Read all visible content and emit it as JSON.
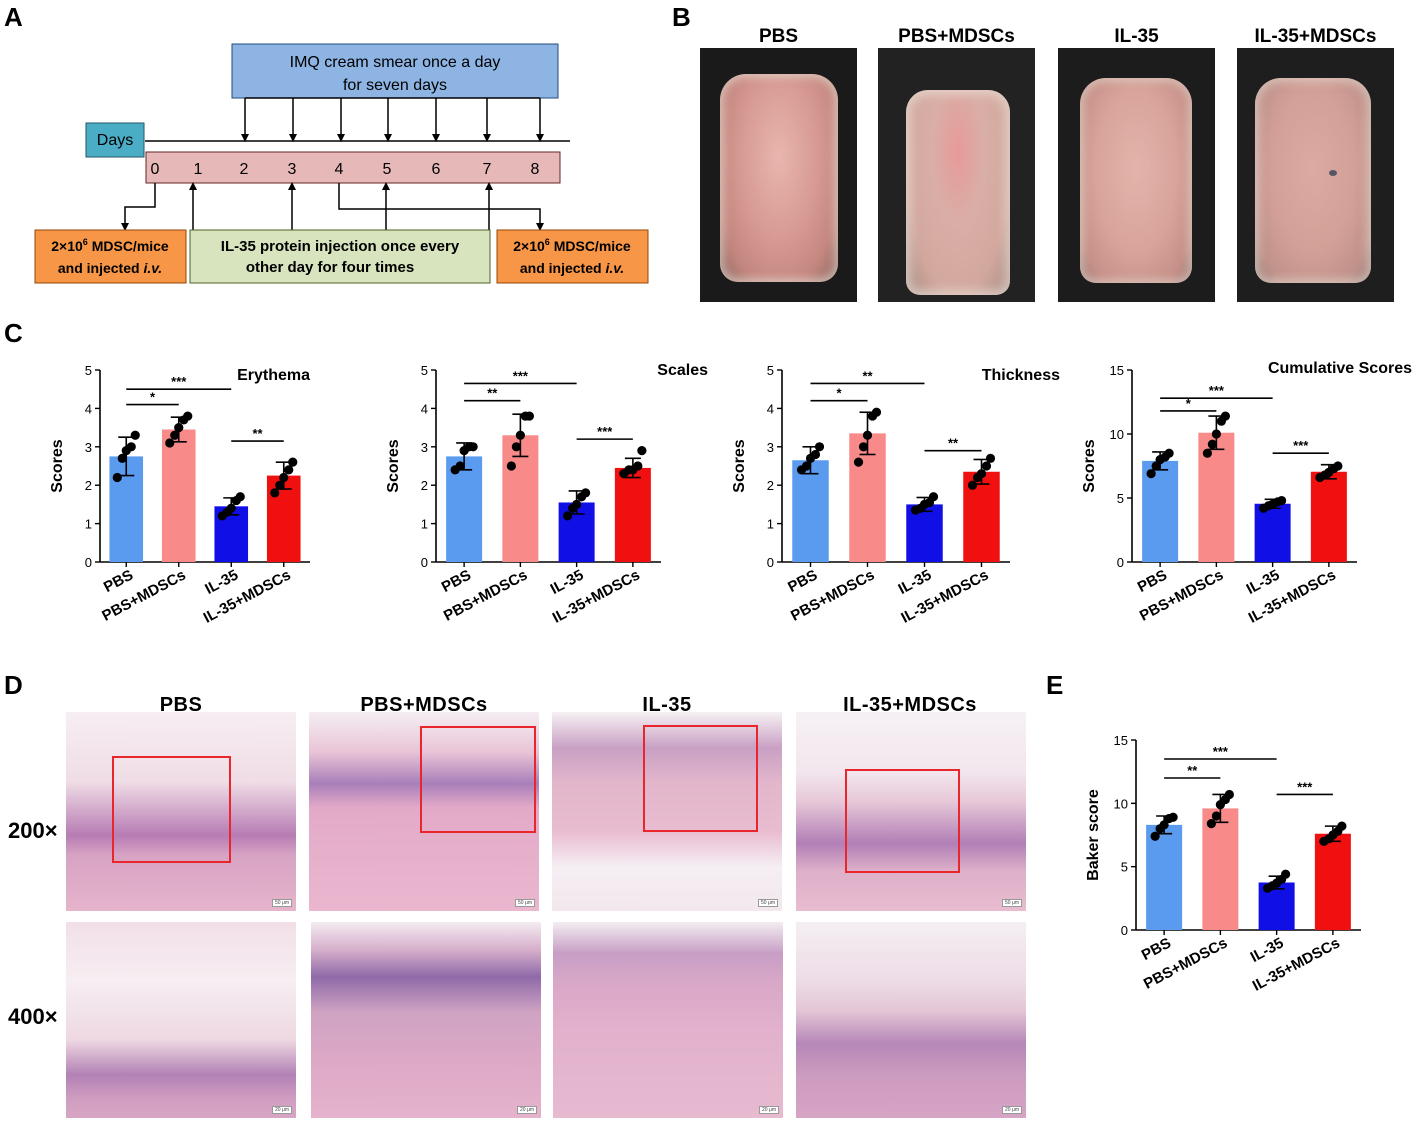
{
  "panels": {
    "A": "A",
    "B": "B",
    "C": "C",
    "D": "D",
    "E": "E"
  },
  "panelA": {
    "top_box": [
      "IMQ  cream smear once a day",
      "for seven days"
    ],
    "days_label": "Days",
    "day_numbers": [
      "0",
      "1",
      "2",
      "3",
      "4",
      "5",
      "6",
      "7",
      "8"
    ],
    "left_box_line1": "2×10",
    "left_box_sup": "6",
    "left_box_line1_end": " MDSC/mice",
    "left_box_line2": "and injected ",
    "left_box_line2_italic": "i.v.",
    "middle_box": [
      "IL-35 protein injection once every",
      "other day for four times"
    ],
    "right_box_line1": "2×10",
    "right_box_sup": "6",
    "right_box_line1_end": " MDSC/mice",
    "right_box_line2": "and injected ",
    "right_box_line2_italic": "i.v.",
    "colors": {
      "blue_box": "#8db4e2",
      "teal_box": "#4bacc6",
      "pink_bar": "#e6b9b8",
      "green_box": "#d7e4bd",
      "orange_box": "#f79646"
    }
  },
  "panelB": {
    "labels": [
      "PBS",
      "PBS+MDSCs",
      "IL-35",
      "IL-35+MDSCs"
    ]
  },
  "panelD": {
    "labels": [
      "PBS",
      "PBS+MDSCs",
      "IL-35",
      "IL-35+MDSCs"
    ],
    "magnifications": [
      "200×",
      "400×"
    ],
    "scale_200": "50 μm",
    "scale_400": "20 μm"
  },
  "bar_colors": [
    "#5b9bef",
    "#f98a8a",
    "#1010e6",
    "#f01010"
  ],
  "chart_data": [
    {
      "type": "bar",
      "title": "Erythema",
      "ylabel": "Scores",
      "categories": [
        "PBS",
        "PBS+MDSCs",
        "IL-35",
        "IL-35+MDSCs"
      ],
      "values": [
        2.75,
        3.45,
        1.45,
        2.25
      ],
      "errors": [
        0.5,
        0.32,
        0.22,
        0.35
      ],
      "points": [
        [
          2.2,
          2.7,
          2.9,
          3.0,
          3.3
        ],
        [
          3.1,
          3.3,
          3.5,
          3.7,
          3.8
        ],
        [
          1.2,
          1.3,
          1.4,
          1.6,
          1.7
        ],
        [
          1.8,
          2.0,
          2.2,
          2.4,
          2.6
        ]
      ],
      "ylim": [
        0,
        5
      ],
      "yticks": [
        "0",
        "1",
        "2",
        "3",
        "4",
        "5"
      ],
      "sig": [
        {
          "from": 0,
          "to": 1,
          "label": "*",
          "y": 4.1
        },
        {
          "from": 0,
          "to": 2,
          "label": "***",
          "y": 4.5
        },
        {
          "from": 2,
          "to": 3,
          "label": "**",
          "y": 3.15
        }
      ]
    },
    {
      "type": "bar",
      "title": "Scales",
      "ylabel": "Scores",
      "categories": [
        "PBS",
        "PBS+MDSCs",
        "IL-35",
        "IL-35+MDSCs"
      ],
      "values": [
        2.75,
        3.3,
        1.55,
        2.45
      ],
      "errors": [
        0.35,
        0.55,
        0.3,
        0.25
      ],
      "points": [
        [
          2.4,
          2.5,
          2.9,
          3.0,
          3.0
        ],
        [
          2.5,
          3.0,
          3.3,
          3.8,
          3.8
        ],
        [
          1.2,
          1.4,
          1.5,
          1.7,
          1.8
        ],
        [
          2.3,
          2.4,
          2.4,
          2.5,
          2.9
        ]
      ],
      "ylim": [
        0,
        5
      ],
      "yticks": [
        "0",
        "1",
        "2",
        "3",
        "4",
        "5"
      ],
      "sig": [
        {
          "from": 0,
          "to": 1,
          "label": "**",
          "y": 4.2
        },
        {
          "from": 0,
          "to": 2,
          "label": "***",
          "y": 4.65
        },
        {
          "from": 2,
          "to": 3,
          "label": "***",
          "y": 3.2
        }
      ]
    },
    {
      "type": "bar",
      "title": "Thickness",
      "ylabel": "Scores",
      "categories": [
        "PBS",
        "PBS+MDSCs",
        "IL-35",
        "IL-35+MDSCs"
      ],
      "values": [
        2.65,
        3.35,
        1.5,
        2.35
      ],
      "errors": [
        0.35,
        0.55,
        0.18,
        0.32
      ],
      "points": [
        [
          2.4,
          2.5,
          2.7,
          2.8,
          3.0
        ],
        [
          2.6,
          3.0,
          3.3,
          3.8,
          3.9
        ],
        [
          1.35,
          1.4,
          1.5,
          1.55,
          1.7
        ],
        [
          2.0,
          2.2,
          2.3,
          2.5,
          2.7
        ]
      ],
      "ylim": [
        0,
        5
      ],
      "yticks": [
        "0",
        "1",
        "2",
        "3",
        "4",
        "5"
      ],
      "sig": [
        {
          "from": 0,
          "to": 1,
          "label": "*",
          "y": 4.2
        },
        {
          "from": 0,
          "to": 2,
          "label": "**",
          "y": 4.65
        },
        {
          "from": 2,
          "to": 3,
          "label": "**",
          "y": 2.9
        }
      ]
    },
    {
      "type": "bar",
      "title": "Cumulative Scores",
      "ylabel": "Scores",
      "categories": [
        "PBS",
        "PBS+MDSCs",
        "IL-35",
        "IL-35+MDSCs"
      ],
      "values": [
        7.9,
        10.1,
        4.55,
        7.05
      ],
      "errors": [
        0.7,
        1.3,
        0.35,
        0.55
      ],
      "points": [
        [
          6.9,
          7.5,
          8.0,
          8.2,
          8.5
        ],
        [
          8.5,
          9.2,
          10.0,
          11.0,
          11.4
        ],
        [
          4.2,
          4.4,
          4.5,
          4.7,
          4.8
        ],
        [
          6.6,
          6.8,
          7.0,
          7.3,
          7.5
        ]
      ],
      "ylim": [
        0,
        15
      ],
      "yticks": [
        "0",
        "5",
        "10",
        "15"
      ],
      "sig": [
        {
          "from": 0,
          "to": 1,
          "label": "*",
          "y": 11.8
        },
        {
          "from": 0,
          "to": 2,
          "label": "***",
          "y": 12.8
        },
        {
          "from": 2,
          "to": 3,
          "label": "***",
          "y": 8.5
        }
      ]
    },
    {
      "type": "bar",
      "title": "",
      "ylabel": "Baker score",
      "categories": [
        "PBS",
        "PBS+MDSCs",
        "IL-35",
        "IL-35+MDSCs"
      ],
      "values": [
        8.3,
        9.6,
        3.75,
        7.6
      ],
      "errors": [
        0.7,
        1.1,
        0.5,
        0.6
      ],
      "points": [
        [
          7.4,
          8.0,
          8.3,
          8.8,
          8.9
        ],
        [
          8.4,
          9.0,
          9.9,
          10.3,
          10.7
        ],
        [
          3.3,
          3.5,
          3.7,
          4.0,
          4.4
        ],
        [
          7.0,
          7.2,
          7.5,
          7.8,
          8.2
        ]
      ],
      "ylim": [
        0,
        15
      ],
      "yticks": [
        "0",
        "5",
        "10",
        "15"
      ],
      "sig": [
        {
          "from": 0,
          "to": 1,
          "label": "**",
          "y": 12.0
        },
        {
          "from": 0,
          "to": 2,
          "label": "***",
          "y": 13.5
        },
        {
          "from": 2,
          "to": 3,
          "label": "***",
          "y": 10.7
        }
      ]
    }
  ]
}
